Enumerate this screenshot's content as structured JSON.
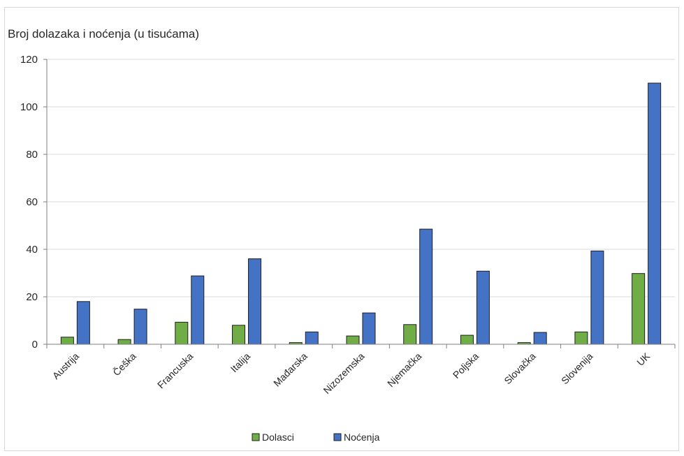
{
  "chart_data": {
    "type": "bar",
    "title": "Broj dolazaka i noćenja (u tisućama)",
    "categories": [
      "Austrija",
      "Češka",
      "Francuska",
      "Italija",
      "Mađarska",
      "Nizozemska",
      "Njemačka",
      "Poljska",
      "Slovačka",
      "Slovenija",
      "UK"
    ],
    "series": [
      {
        "name": "Dolasci",
        "color": "#70ad47",
        "values": [
          3,
          2,
          9.3,
          8,
          0.7,
          3.5,
          8.3,
          3.8,
          0.7,
          5.2,
          29.8
        ]
      },
      {
        "name": "Noćenja",
        "color": "#4472c4",
        "values": [
          18,
          14.8,
          28.8,
          36,
          5.2,
          13.2,
          48.5,
          30.8,
          5,
          39.3,
          110
        ]
      }
    ],
    "ylim": [
      0,
      120
    ],
    "yticks": [
      0,
      20,
      40,
      60,
      80,
      100,
      120
    ],
    "grid": true,
    "legend": "bottom"
  }
}
